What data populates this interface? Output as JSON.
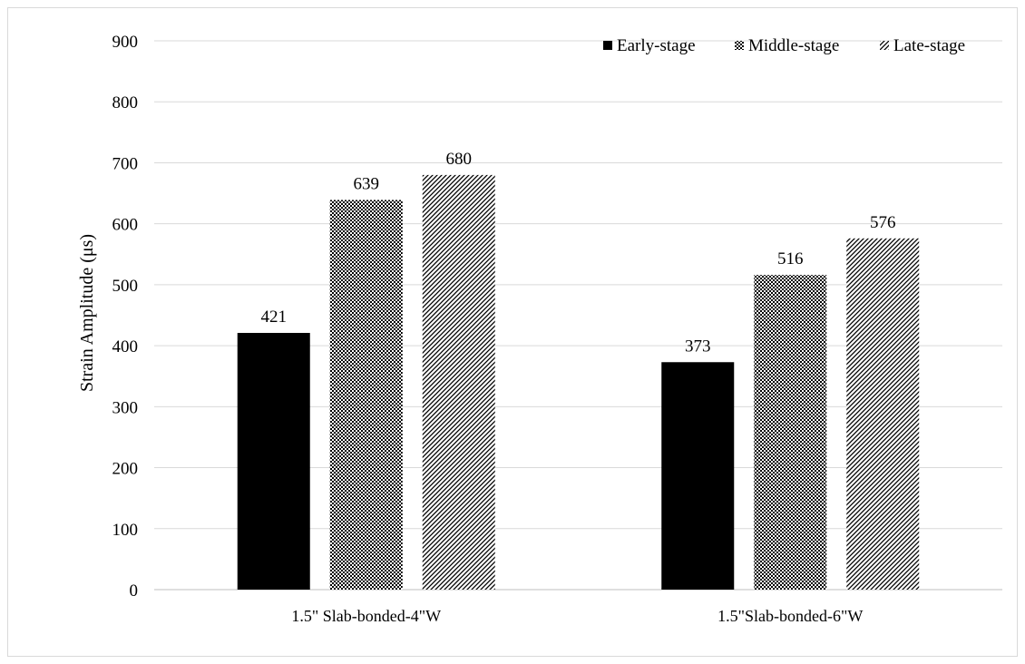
{
  "chart_data": {
    "type": "bar",
    "categories": [
      "1.5\" Slab-bonded-4\"W",
      "1.5\"Slab-bonded-6\"W"
    ],
    "series": [
      {
        "name": "Early-stage",
        "values": [
          421,
          373
        ],
        "pattern": "solid",
        "color": "#000000"
      },
      {
        "name": "Middle-stage",
        "values": [
          639,
          516
        ],
        "pattern": "checker",
        "color": "#000000"
      },
      {
        "name": "Late-stage",
        "values": [
          680,
          576
        ],
        "pattern": "diagonal",
        "color": "#000000"
      }
    ],
    "title": "",
    "xlabel": "",
    "ylabel": "Strain Amplitude (μs)",
    "ylim": [
      0,
      900
    ],
    "yticks": [
      0,
      100,
      200,
      300,
      400,
      500,
      600,
      700,
      800,
      900
    ],
    "grid": true,
    "legend_position": "top-right",
    "data_labels": true
  }
}
